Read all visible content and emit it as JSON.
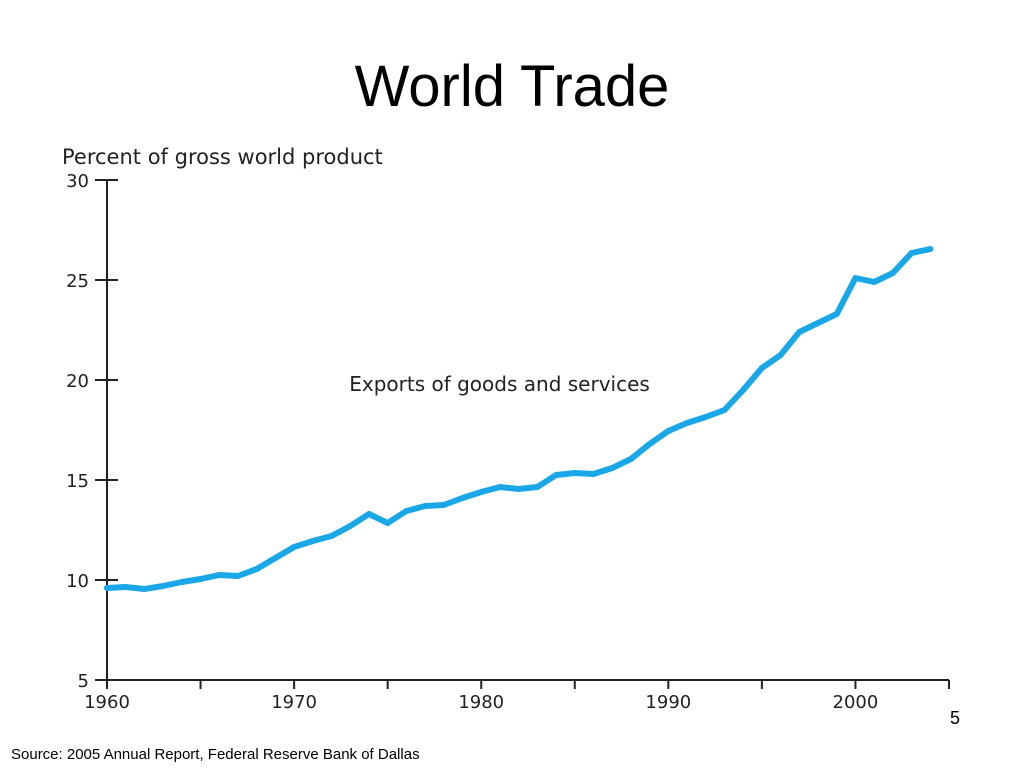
{
  "slide": {
    "title": "World Trade",
    "source": "Source: 2005 Annual Report, Federal Reserve Bank of Dallas",
    "page_number": "5"
  },
  "chart_data": {
    "type": "line",
    "title": "",
    "ylabel": "Percent of gross world product",
    "xlabel": "",
    "xlim": [
      1960,
      2005
    ],
    "ylim": [
      5,
      30
    ],
    "x_ticks": [
      1960,
      1965,
      1970,
      1975,
      1980,
      1985,
      1990,
      1995,
      2000,
      2005
    ],
    "x_tick_labels": [
      "1960",
      "1970",
      "1980",
      "1990",
      "2000"
    ],
    "x_tick_label_values": [
      1960,
      1970,
      1980,
      1990,
      2000
    ],
    "y_ticks": [
      5,
      10,
      15,
      20,
      25,
      30
    ],
    "y_tick_labels": [
      "5",
      "10",
      "15",
      "20",
      "25",
      "30"
    ],
    "grid": false,
    "legend": "none",
    "line_color": "#1aa7e8",
    "series": [
      {
        "name": "Exports of goods and services",
        "x": [
          1960,
          1961,
          1962,
          1963,
          1964,
          1965,
          1966,
          1967,
          1968,
          1969,
          1970,
          1971,
          1972,
          1973,
          1974,
          1975,
          1976,
          1977,
          1978,
          1979,
          1980,
          1981,
          1982,
          1983,
          1984,
          1985,
          1986,
          1987,
          1988,
          1989,
          1990,
          1991,
          1992,
          1993,
          1994,
          1995,
          1996,
          1997,
          1998,
          1999,
          2000,
          2001,
          2002,
          2003,
          2004
        ],
        "values": [
          9.6,
          9.65,
          9.55,
          9.7,
          9.9,
          10.05,
          10.25,
          10.2,
          10.55,
          11.1,
          11.65,
          11.95,
          12.2,
          12.7,
          13.3,
          12.85,
          13.45,
          13.7,
          13.75,
          14.1,
          14.4,
          14.65,
          14.55,
          14.65,
          15.25,
          15.35,
          15.3,
          15.6,
          16.05,
          16.8,
          17.45,
          17.85,
          18.15,
          18.5,
          19.5,
          20.6,
          21.25,
          22.4,
          22.85,
          23.3,
          25.1,
          24.9,
          25.35,
          26.35,
          26.55
        ]
      }
    ],
    "annotations": [
      {
        "text": "Exports of goods and services",
        "x": 1973,
        "y": 19.5
      }
    ]
  }
}
